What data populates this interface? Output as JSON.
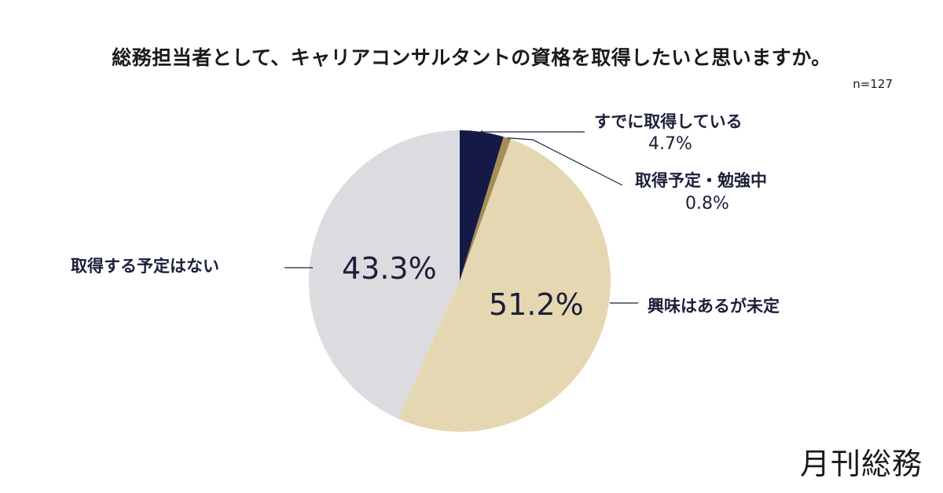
{
  "publisher": "月刊総務",
  "chart_data": {
    "type": "pie",
    "title": "総務担当者として、キャリアコンサルタントの資格を取得したいと思いますか。",
    "sample_size": "n=127",
    "start_angle_deg": 0,
    "direction": "clockwise",
    "slices": [
      {
        "label": "すでに取得している",
        "value": 4.7,
        "value_text": "4.7%",
        "color": "#141a45"
      },
      {
        "label": "取得予定・勉強中",
        "value": 0.8,
        "value_text": "0.8%",
        "color": "#a88d55"
      },
      {
        "label": "興味はあるが未定",
        "value": 51.2,
        "value_text": "51.2%",
        "color": "#e5d7b1"
      },
      {
        "label": "取得する予定はない",
        "value": 43.3,
        "value_text": "43.3%",
        "color": "#dcdbdf"
      }
    ]
  }
}
